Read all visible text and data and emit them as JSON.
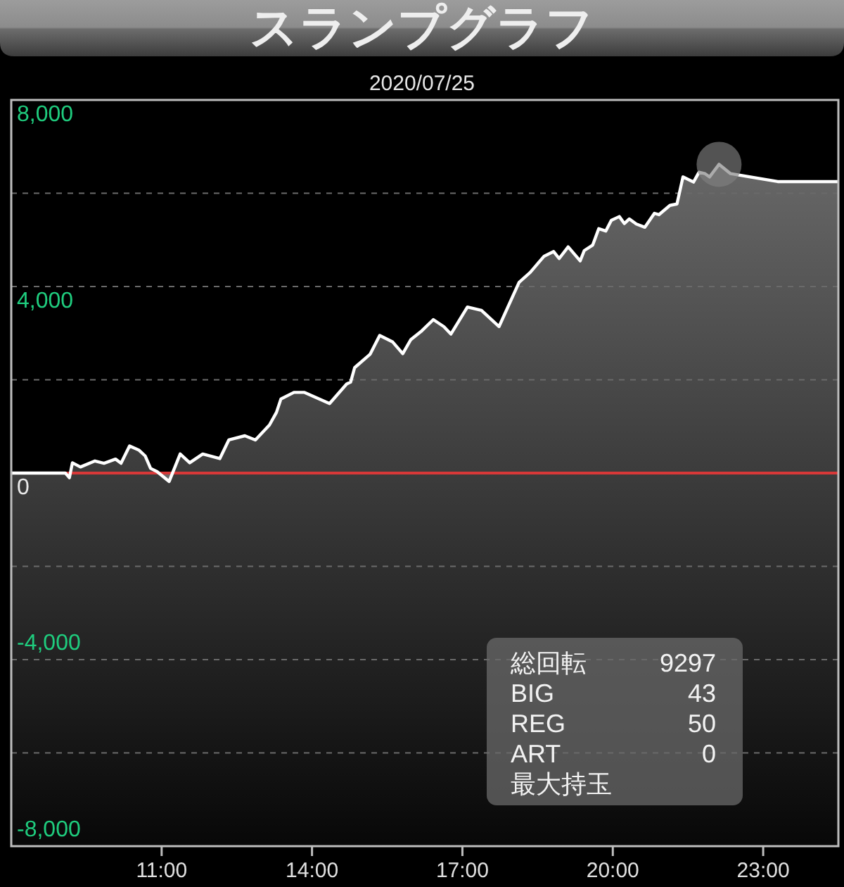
{
  "chart_data": {
    "type": "area",
    "title": "スランプグラフ",
    "subtitle": "2020/07/25",
    "xlim": [
      8,
      24.5
    ],
    "xticks": [
      {
        "value": 11,
        "label": "11:00"
      },
      {
        "value": 14,
        "label": "14:00"
      },
      {
        "value": 17,
        "label": "17:00"
      },
      {
        "value": 20,
        "label": "20:00"
      },
      {
        "value": 23,
        "label": "23:00"
      }
    ],
    "ylim": [
      -8000,
      8000
    ],
    "yticks": [
      {
        "value": -8000,
        "label": "-8,000"
      },
      {
        "value": -6000,
        "label": null
      },
      {
        "value": -4000,
        "label": "-4,000"
      },
      {
        "value": -2000,
        "label": null
      },
      {
        "value": 0,
        "label": "0"
      },
      {
        "value": 2000,
        "label": null
      },
      {
        "value": 4000,
        "label": "4,000"
      },
      {
        "value": 6000,
        "label": null
      },
      {
        "value": 8000,
        "label": "8,000"
      }
    ],
    "grid": "y",
    "line_style": "solid",
    "ref_lines": [
      {
        "axis": "y",
        "value": 0,
        "color": "#d83838"
      }
    ],
    "bands": [
      {
        "axis": "y",
        "from": -8000,
        "to": 0,
        "color": "#ffffff"
      }
    ],
    "series": [
      {
        "color": "#ffffff",
        "x": [
          8,
          9.08,
          9.16,
          9.22,
          9.38,
          9.67,
          9.85,
          10.08,
          10.19,
          10.36,
          10.55,
          10.67,
          10.78,
          10.91,
          11.15,
          11.37,
          11.56,
          11.82,
          12.16,
          12.34,
          12.66,
          12.87,
          13.15,
          13.29,
          13.38,
          13.64,
          13.85,
          14.35,
          14.69,
          14.77,
          14.85,
          15.16,
          15.35,
          15.61,
          15.81,
          15.97,
          16.19,
          16.42,
          16.63,
          16.77,
          17.1,
          17.38,
          17.73,
          18.13,
          18.35,
          18.63,
          18.82,
          18.93,
          19.11,
          19.35,
          19.43,
          19.6,
          19.72,
          19.86,
          19.97,
          20.13,
          20.23,
          20.33,
          20.47,
          20.64,
          20.83,
          20.92,
          21.14,
          21.28,
          21.4,
          21.61,
          21.72,
          21.84,
          21.93,
          22.12,
          22.35,
          23.29,
          24.5
        ],
        "values": [
          0,
          0,
          -100,
          220,
          130,
          260,
          210,
          300,
          210,
          580,
          490,
          370,
          100,
          30,
          -180,
          410,
          220,
          410,
          310,
          710,
          800,
          710,
          1030,
          1300,
          1590,
          1730,
          1730,
          1490,
          1910,
          1950,
          2260,
          2550,
          2950,
          2810,
          2560,
          2860,
          3050,
          3290,
          3140,
          2980,
          3560,
          3490,
          3140,
          4090,
          4300,
          4650,
          4750,
          4600,
          4850,
          4550,
          4770,
          4890,
          5240,
          5190,
          5420,
          5500,
          5350,
          5450,
          5340,
          5270,
          5570,
          5540,
          5740,
          5770,
          6350,
          6240,
          6450,
          6420,
          6350,
          6620,
          6420,
          6250,
          6250
        ]
      },
      {
        "type": "scatter",
        "color": "#808080",
        "marker": "circle",
        "x": [
          22.12
        ],
        "values": [
          6620
        ]
      }
    ],
    "annotations": [
      "総回転 9297",
      "BIG 43",
      "REG 50",
      "ART 0",
      "最大持玉"
    ]
  }
}
